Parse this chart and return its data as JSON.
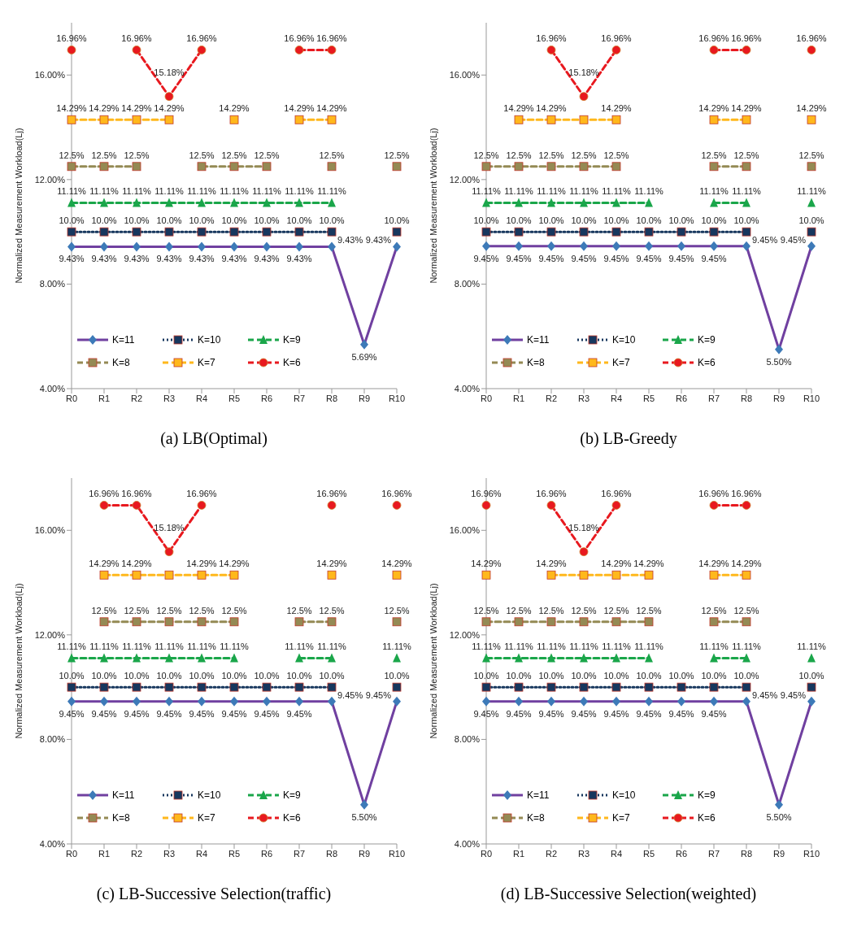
{
  "chart_data": [
    {
      "type": "line",
      "title": "(a)  LB(Optimal)",
      "ylabel": "Normalized Measurement Workload(Lj)",
      "categories": [
        "R0",
        "R1",
        "R2",
        "R3",
        "R4",
        "R5",
        "R6",
        "R7",
        "R8",
        "R9",
        "R10"
      ],
      "ylim": [
        4,
        18
      ],
      "yticks": [
        {
          "value": 4,
          "label": "4.00%"
        },
        {
          "value": 8,
          "label": "8.00%"
        },
        {
          "value": 12,
          "label": "12.00%"
        },
        {
          "value": 16,
          "label": "16.00%"
        }
      ],
      "legend": "bottom left",
      "series": [
        {
          "name": "K=11",
          "color": "#7040a0",
          "marker": "diamond",
          "line_style": "solid",
          "values": [
            9.43,
            9.43,
            9.43,
            9.43,
            9.43,
            9.43,
            9.43,
            9.43,
            9.43,
            5.69,
            9.43
          ],
          "value_labels": [
            "9.43%",
            "9.43%",
            "9.43%",
            "9.43%",
            "9.43%",
            "9.43%",
            "9.43%",
            "9.43%",
            "9.43%",
            "5.69%",
            "9.43%"
          ]
        },
        {
          "name": "K=10",
          "color": "#17375e",
          "marker": "square",
          "line_style": "dotted",
          "values": [
            10,
            10,
            10,
            10,
            10,
            10,
            10,
            10,
            10,
            null,
            10
          ],
          "value_labels": [
            "10.0%",
            "10.0%",
            "10.0%",
            "10.0%",
            "10.0%",
            "10.0%",
            "10.0%",
            "10.0%",
            "10.0%",
            null,
            "10.0%"
          ]
        },
        {
          "name": "K=9",
          "color": "#1aa64a",
          "marker": "triangle",
          "line_style": "dashed",
          "values": [
            11.11,
            11.11,
            11.11,
            11.11,
            11.11,
            11.11,
            11.11,
            11.11,
            11.11,
            null,
            null
          ],
          "value_labels": [
            "11.11%",
            "11.11%",
            "11.11%",
            "11.11%",
            "11.11%",
            "11.11%",
            "11.11%",
            "11.11%",
            "11.11%",
            null,
            null
          ]
        },
        {
          "name": "K=8",
          "color": "#948a54",
          "marker": "square",
          "line_style": "dashed",
          "values": [
            12.5,
            12.5,
            12.5,
            null,
            12.5,
            12.5,
            12.5,
            null,
            12.5,
            null,
            12.5
          ],
          "value_labels": [
            "12.5%",
            "12.5%",
            "12.5%",
            null,
            "12.5%",
            "12.5%",
            "12.5%",
            null,
            "12.5%",
            null,
            "12.5%"
          ]
        },
        {
          "name": "K=7",
          "color": "#ffb81c",
          "marker": "square",
          "line_style": "dashed",
          "values": [
            14.29,
            14.29,
            14.29,
            14.29,
            null,
            14.29,
            null,
            14.29,
            14.29,
            null,
            null
          ],
          "value_labels": [
            "14.29%",
            "14.29%",
            "14.29%",
            "14.29%",
            null,
            "14.29%",
            null,
            "14.29%",
            "14.29%",
            null,
            null
          ]
        },
        {
          "name": "K=6",
          "color": "#e8191f",
          "marker": "circle",
          "line_style": "dashed",
          "values": [
            16.96,
            null,
            16.96,
            15.18,
            16.96,
            null,
            null,
            16.96,
            16.96,
            null,
            null
          ],
          "value_labels": [
            "16.96%",
            null,
            "16.96%",
            "15.18%",
            "16.96%",
            null,
            null,
            "16.96%",
            "16.96%",
            null,
            null
          ]
        }
      ]
    },
    {
      "type": "line",
      "title": "(b)  LB-Greedy",
      "ylabel": "Normalized Measurement Workload(Lj)",
      "categories": [
        "R0",
        "R1",
        "R2",
        "R3",
        "R4",
        "R5",
        "R6",
        "R7",
        "R8",
        "R9",
        "R10"
      ],
      "ylim": [
        4,
        18
      ],
      "yticks": [
        {
          "value": 4,
          "label": "4.00%"
        },
        {
          "value": 8,
          "label": "8.00%"
        },
        {
          "value": 12,
          "label": "12.00%"
        },
        {
          "value": 16,
          "label": "16.00%"
        }
      ],
      "legend": "bottom left",
      "series": [
        {
          "name": "K=11",
          "color": "#7040a0",
          "marker": "diamond",
          "line_style": "solid",
          "values": [
            9.45,
            9.45,
            9.45,
            9.45,
            9.45,
            9.45,
            9.45,
            9.45,
            9.45,
            5.5,
            9.45
          ],
          "value_labels": [
            "9.45%",
            "9.45%",
            "9.45%",
            "9.45%",
            "9.45%",
            "9.45%",
            "9.45%",
            "9.45%",
            "9.45%",
            "5.50%",
            "9.45%"
          ]
        },
        {
          "name": "K=10",
          "color": "#17375e",
          "marker": "square",
          "line_style": "dotted",
          "values": [
            10,
            10,
            10,
            10,
            10,
            10,
            10,
            10,
            10,
            null,
            10
          ],
          "value_labels": [
            "10.0%",
            "10.0%",
            "10.0%",
            "10.0%",
            "10.0%",
            "10.0%",
            "10.0%",
            "10.0%",
            "10.0%",
            null,
            "10.0%"
          ]
        },
        {
          "name": "K=9",
          "color": "#1aa64a",
          "marker": "triangle",
          "line_style": "dashed",
          "values": [
            11.11,
            11.11,
            11.11,
            11.11,
            11.11,
            11.11,
            null,
            11.11,
            11.11,
            null,
            11.11
          ],
          "value_labels": [
            "11.11%",
            "11.11%",
            "11.11%",
            "11.11%",
            "11.11%",
            "11.11%",
            null,
            "11.11%",
            "11.11%",
            null,
            "11.11%"
          ]
        },
        {
          "name": "K=8",
          "color": "#948a54",
          "marker": "square",
          "line_style": "dashed",
          "values": [
            12.5,
            12.5,
            12.5,
            12.5,
            12.5,
            null,
            null,
            12.5,
            12.5,
            null,
            12.5
          ],
          "value_labels": [
            "12.5%",
            "12.5%",
            "12.5%",
            "12.5%",
            "12.5%",
            null,
            null,
            "12.5%",
            "12.5%",
            null,
            "12.5%"
          ]
        },
        {
          "name": "K=7",
          "color": "#ffb81c",
          "marker": "square",
          "line_style": "dashed",
          "values": [
            null,
            14.29,
            14.29,
            14.29,
            14.29,
            null,
            null,
            14.29,
            14.29,
            null,
            14.29
          ],
          "value_labels": [
            null,
            "14.29%",
            "14.29%",
            null,
            "14.29%",
            null,
            null,
            "14.29%",
            "14.29%",
            null,
            "14.29%"
          ]
        },
        {
          "name": "K=6",
          "color": "#e8191f",
          "marker": "circle",
          "line_style": "dashed",
          "values": [
            null,
            null,
            16.96,
            15.18,
            16.96,
            null,
            null,
            16.96,
            16.96,
            null,
            16.96
          ],
          "value_labels": [
            null,
            null,
            "16.96%",
            "15.18%",
            "16.96%",
            null,
            null,
            "16.96%",
            "16.96%",
            null,
            "16.96%"
          ]
        }
      ]
    },
    {
      "type": "line",
      "title": "(c)  LB-Successive Selection(traffic)",
      "ylabel": "Normalized Measurement Workload(Lj)",
      "categories": [
        "R0",
        "R1",
        "R2",
        "R3",
        "R4",
        "R5",
        "R6",
        "R7",
        "R8",
        "R9",
        "R10"
      ],
      "ylim": [
        4,
        18
      ],
      "yticks": [
        {
          "value": 4,
          "label": "4.00%"
        },
        {
          "value": 8,
          "label": "8.00%"
        },
        {
          "value": 12,
          "label": "12.00%"
        },
        {
          "value": 16,
          "label": "16.00%"
        }
      ],
      "legend": "bottom left",
      "series": [
        {
          "name": "K=11",
          "color": "#7040a0",
          "marker": "diamond",
          "line_style": "solid",
          "values": [
            9.45,
            9.45,
            9.45,
            9.45,
            9.45,
            9.45,
            9.45,
            9.45,
            9.45,
            5.5,
            9.45
          ],
          "value_labels": [
            "9.45%",
            "9.45%",
            "9.45%",
            "9.45%",
            "9.45%",
            "9.45%",
            "9.45%",
            "9.45%",
            "9.45%",
            "5.50%",
            "9.45%"
          ]
        },
        {
          "name": "K=10",
          "color": "#17375e",
          "marker": "square",
          "line_style": "dotted",
          "values": [
            10,
            10,
            10,
            10,
            10,
            10,
            10,
            10,
            10,
            null,
            10
          ],
          "value_labels": [
            "10.0%",
            "10.0%",
            "10.0%",
            "10.0%",
            "10.0%",
            "10.0%",
            "10.0%",
            "10.0%",
            "10.0%",
            null,
            "10.0%"
          ]
        },
        {
          "name": "K=9",
          "color": "#1aa64a",
          "marker": "triangle",
          "line_style": "dashed",
          "values": [
            11.11,
            11.11,
            11.11,
            11.11,
            11.11,
            11.11,
            null,
            11.11,
            11.11,
            null,
            11.11
          ],
          "value_labels": [
            "11.11%",
            "11.11%",
            "11.11%",
            "11.11%",
            "11.11%",
            "11.11%",
            null,
            "11.11%",
            "11.11%",
            null,
            "11.11%"
          ]
        },
        {
          "name": "K=8",
          "color": "#948a54",
          "marker": "square",
          "line_style": "dashed",
          "values": [
            null,
            12.5,
            12.5,
            12.5,
            12.5,
            12.5,
            null,
            12.5,
            12.5,
            null,
            12.5
          ],
          "value_labels": [
            null,
            "12.5%",
            "12.5%",
            "12.5%",
            "12.5%",
            "12.5%",
            null,
            "12.5%",
            "12.5%",
            null,
            "12.5%"
          ]
        },
        {
          "name": "K=7",
          "color": "#ffb81c",
          "marker": "square",
          "line_style": "dashed",
          "values": [
            null,
            14.29,
            14.29,
            14.29,
            14.29,
            14.29,
            null,
            null,
            14.29,
            null,
            14.29
          ],
          "value_labels": [
            null,
            "14.29%",
            "14.29%",
            null,
            "14.29%",
            "14.29%",
            null,
            null,
            "14.29%",
            null,
            "14.29%"
          ]
        },
        {
          "name": "K=6",
          "color": "#e8191f",
          "marker": "circle",
          "line_style": "dashed",
          "values": [
            null,
            16.96,
            16.96,
            15.18,
            16.96,
            null,
            null,
            null,
            16.96,
            null,
            16.96
          ],
          "value_labels": [
            null,
            "16.96%",
            "16.96%",
            "15.18%",
            "16.96%",
            null,
            null,
            null,
            "16.96%",
            null,
            "16.96%"
          ]
        }
      ]
    },
    {
      "type": "line",
      "title": "(d)  LB-Successive Selection(weighted)",
      "ylabel": "Normalized Measurement Workload(Lj)",
      "categories": [
        "R0",
        "R1",
        "R2",
        "R3",
        "R4",
        "R5",
        "R6",
        "R7",
        "R8",
        "R9",
        "R10"
      ],
      "ylim": [
        4,
        18
      ],
      "yticks": [
        {
          "value": 4,
          "label": "4.00%"
        },
        {
          "value": 8,
          "label": "8.00%"
        },
        {
          "value": 12,
          "label": "12.00%"
        },
        {
          "value": 16,
          "label": "16.00%"
        }
      ],
      "legend": "bottom left",
      "series": [
        {
          "name": "K=11",
          "color": "#7040a0",
          "marker": "diamond",
          "line_style": "solid",
          "values": [
            9.45,
            9.45,
            9.45,
            9.45,
            9.45,
            9.45,
            9.45,
            9.45,
            9.45,
            5.5,
            9.45
          ],
          "value_labels": [
            "9.45%",
            "9.45%",
            "9.45%",
            "9.45%",
            "9.45%",
            "9.45%",
            "9.45%",
            "9.45%",
            "9.45%",
            "5.50%",
            "9.45%"
          ]
        },
        {
          "name": "K=10",
          "color": "#17375e",
          "marker": "square",
          "line_style": "dotted",
          "values": [
            10,
            10,
            10,
            10,
            10,
            10,
            10,
            10,
            10,
            null,
            10
          ],
          "value_labels": [
            "10.0%",
            "10.0%",
            "10.0%",
            "10.0%",
            "10.0%",
            "10.0%",
            "10.0%",
            "10.0%",
            "10.0%",
            null,
            "10.0%"
          ]
        },
        {
          "name": "K=9",
          "color": "#1aa64a",
          "marker": "triangle",
          "line_style": "dashed",
          "values": [
            11.11,
            11.11,
            11.11,
            11.11,
            11.11,
            11.11,
            null,
            11.11,
            11.11,
            null,
            11.11
          ],
          "value_labels": [
            "11.11%",
            "11.11%",
            "11.11%",
            "11.11%",
            "11.11%",
            "11.11%",
            null,
            "11.11%",
            "11.11%",
            null,
            "11.11%"
          ]
        },
        {
          "name": "K=8",
          "color": "#948a54",
          "marker": "square",
          "line_style": "dashed",
          "values": [
            12.5,
            12.5,
            12.5,
            12.5,
            12.5,
            12.5,
            null,
            12.5,
            12.5,
            null,
            null
          ],
          "value_labels": [
            "12.5%",
            "12.5%",
            "12.5%",
            "12.5%",
            "12.5%",
            "12.5%",
            null,
            "12.5%",
            "12.5%",
            null,
            null
          ]
        },
        {
          "name": "K=7",
          "color": "#ffb81c",
          "marker": "square",
          "line_style": "dashed",
          "values": [
            14.29,
            null,
            14.29,
            14.29,
            14.29,
            14.29,
            null,
            14.29,
            14.29,
            null,
            null
          ],
          "value_labels": [
            "14.29%",
            null,
            "14.29%",
            null,
            "14.29%",
            "14.29%",
            null,
            "14.29%",
            "14.29%",
            null,
            null
          ]
        },
        {
          "name": "K=6",
          "color": "#e8191f",
          "marker": "circle",
          "line_style": "dashed",
          "values": [
            16.96,
            null,
            16.96,
            15.18,
            16.96,
            null,
            null,
            16.96,
            16.96,
            null,
            null
          ],
          "value_labels": [
            "16.96%",
            null,
            "16.96%",
            "15.18%",
            "16.96%",
            null,
            null,
            "16.96%",
            "16.96%",
            null,
            null
          ]
        }
      ]
    }
  ]
}
